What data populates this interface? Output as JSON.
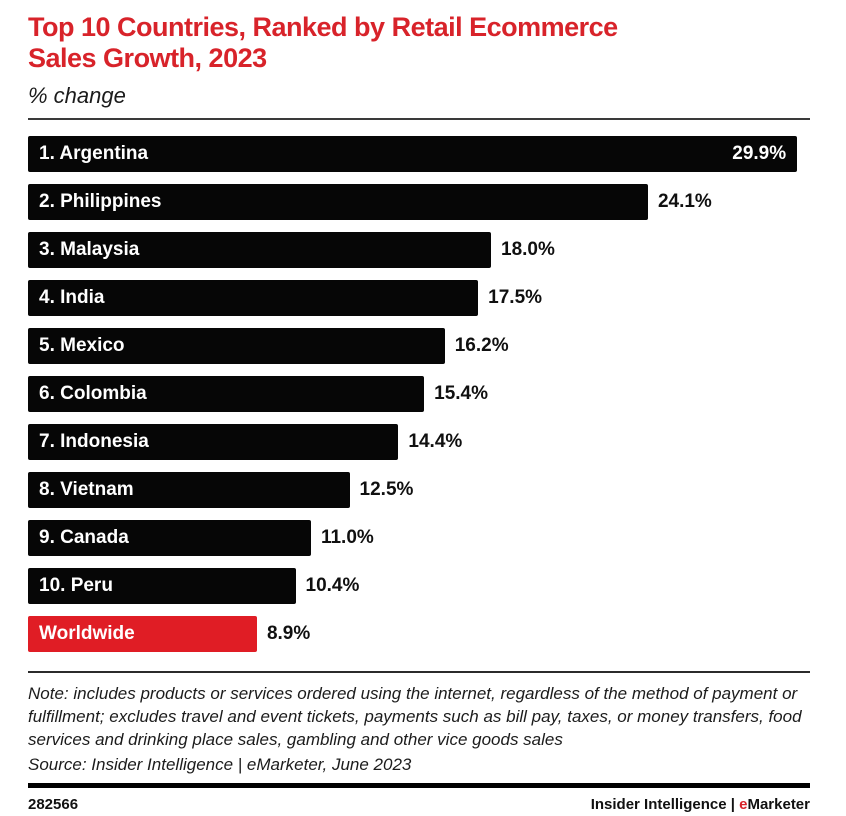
{
  "header": {
    "title_line1": "Top 10 Countries, Ranked by Retail Ecommerce",
    "title_line2": "Sales Growth, 2023",
    "subtitle": "% change"
  },
  "chart_data": {
    "type": "bar",
    "orientation": "horizontal",
    "title": "Top 10 Countries, Ranked by Retail Ecommerce Sales Growth, 2023",
    "xlabel": "% change",
    "ylabel": "",
    "categories": [
      "1. Argentina",
      "2. Philippines",
      "3. Malaysia",
      "4. India",
      "5. Mexico",
      "6. Colombia",
      "7. Indonesia",
      "8. Vietnam",
      "9. Canada",
      "10. Peru",
      "Worldwide"
    ],
    "values": [
      29.9,
      24.1,
      18.0,
      17.5,
      16.2,
      15.4,
      14.4,
      12.5,
      11.0,
      10.4,
      8.9
    ],
    "value_labels": [
      "29.9%",
      "24.1%",
      "18.0%",
      "17.5%",
      "16.2%",
      "15.4%",
      "14.4%",
      "12.5%",
      "11.0%",
      "10.4%",
      "8.9%"
    ],
    "xlim": [
      0,
      30.4
    ],
    "grid": false,
    "legend": "none",
    "bar_color": "#060606",
    "highlight_index": 10,
    "highlight_color": "#e01d25",
    "value_label_inside_index": 0
  },
  "note": "Note: includes products or services ordered using the internet, regardless of the method of payment or fulfillment; excludes travel and event tickets, payments such as bill pay, taxes, or money transfers, food services and drinking place sales, gambling and other vice goods sales",
  "source": "Source: Insider Intelligence | eMarketer, June 2023",
  "footer": {
    "chart_id": "282566",
    "brand_name": "Insider Intelligence",
    "brand_separator": "|",
    "brand_e": "e",
    "brand_rest": "Marketer"
  },
  "colors": {
    "title_red": "#d8232a",
    "highlight_red": "#e01d25",
    "bar_black": "#060606"
  }
}
